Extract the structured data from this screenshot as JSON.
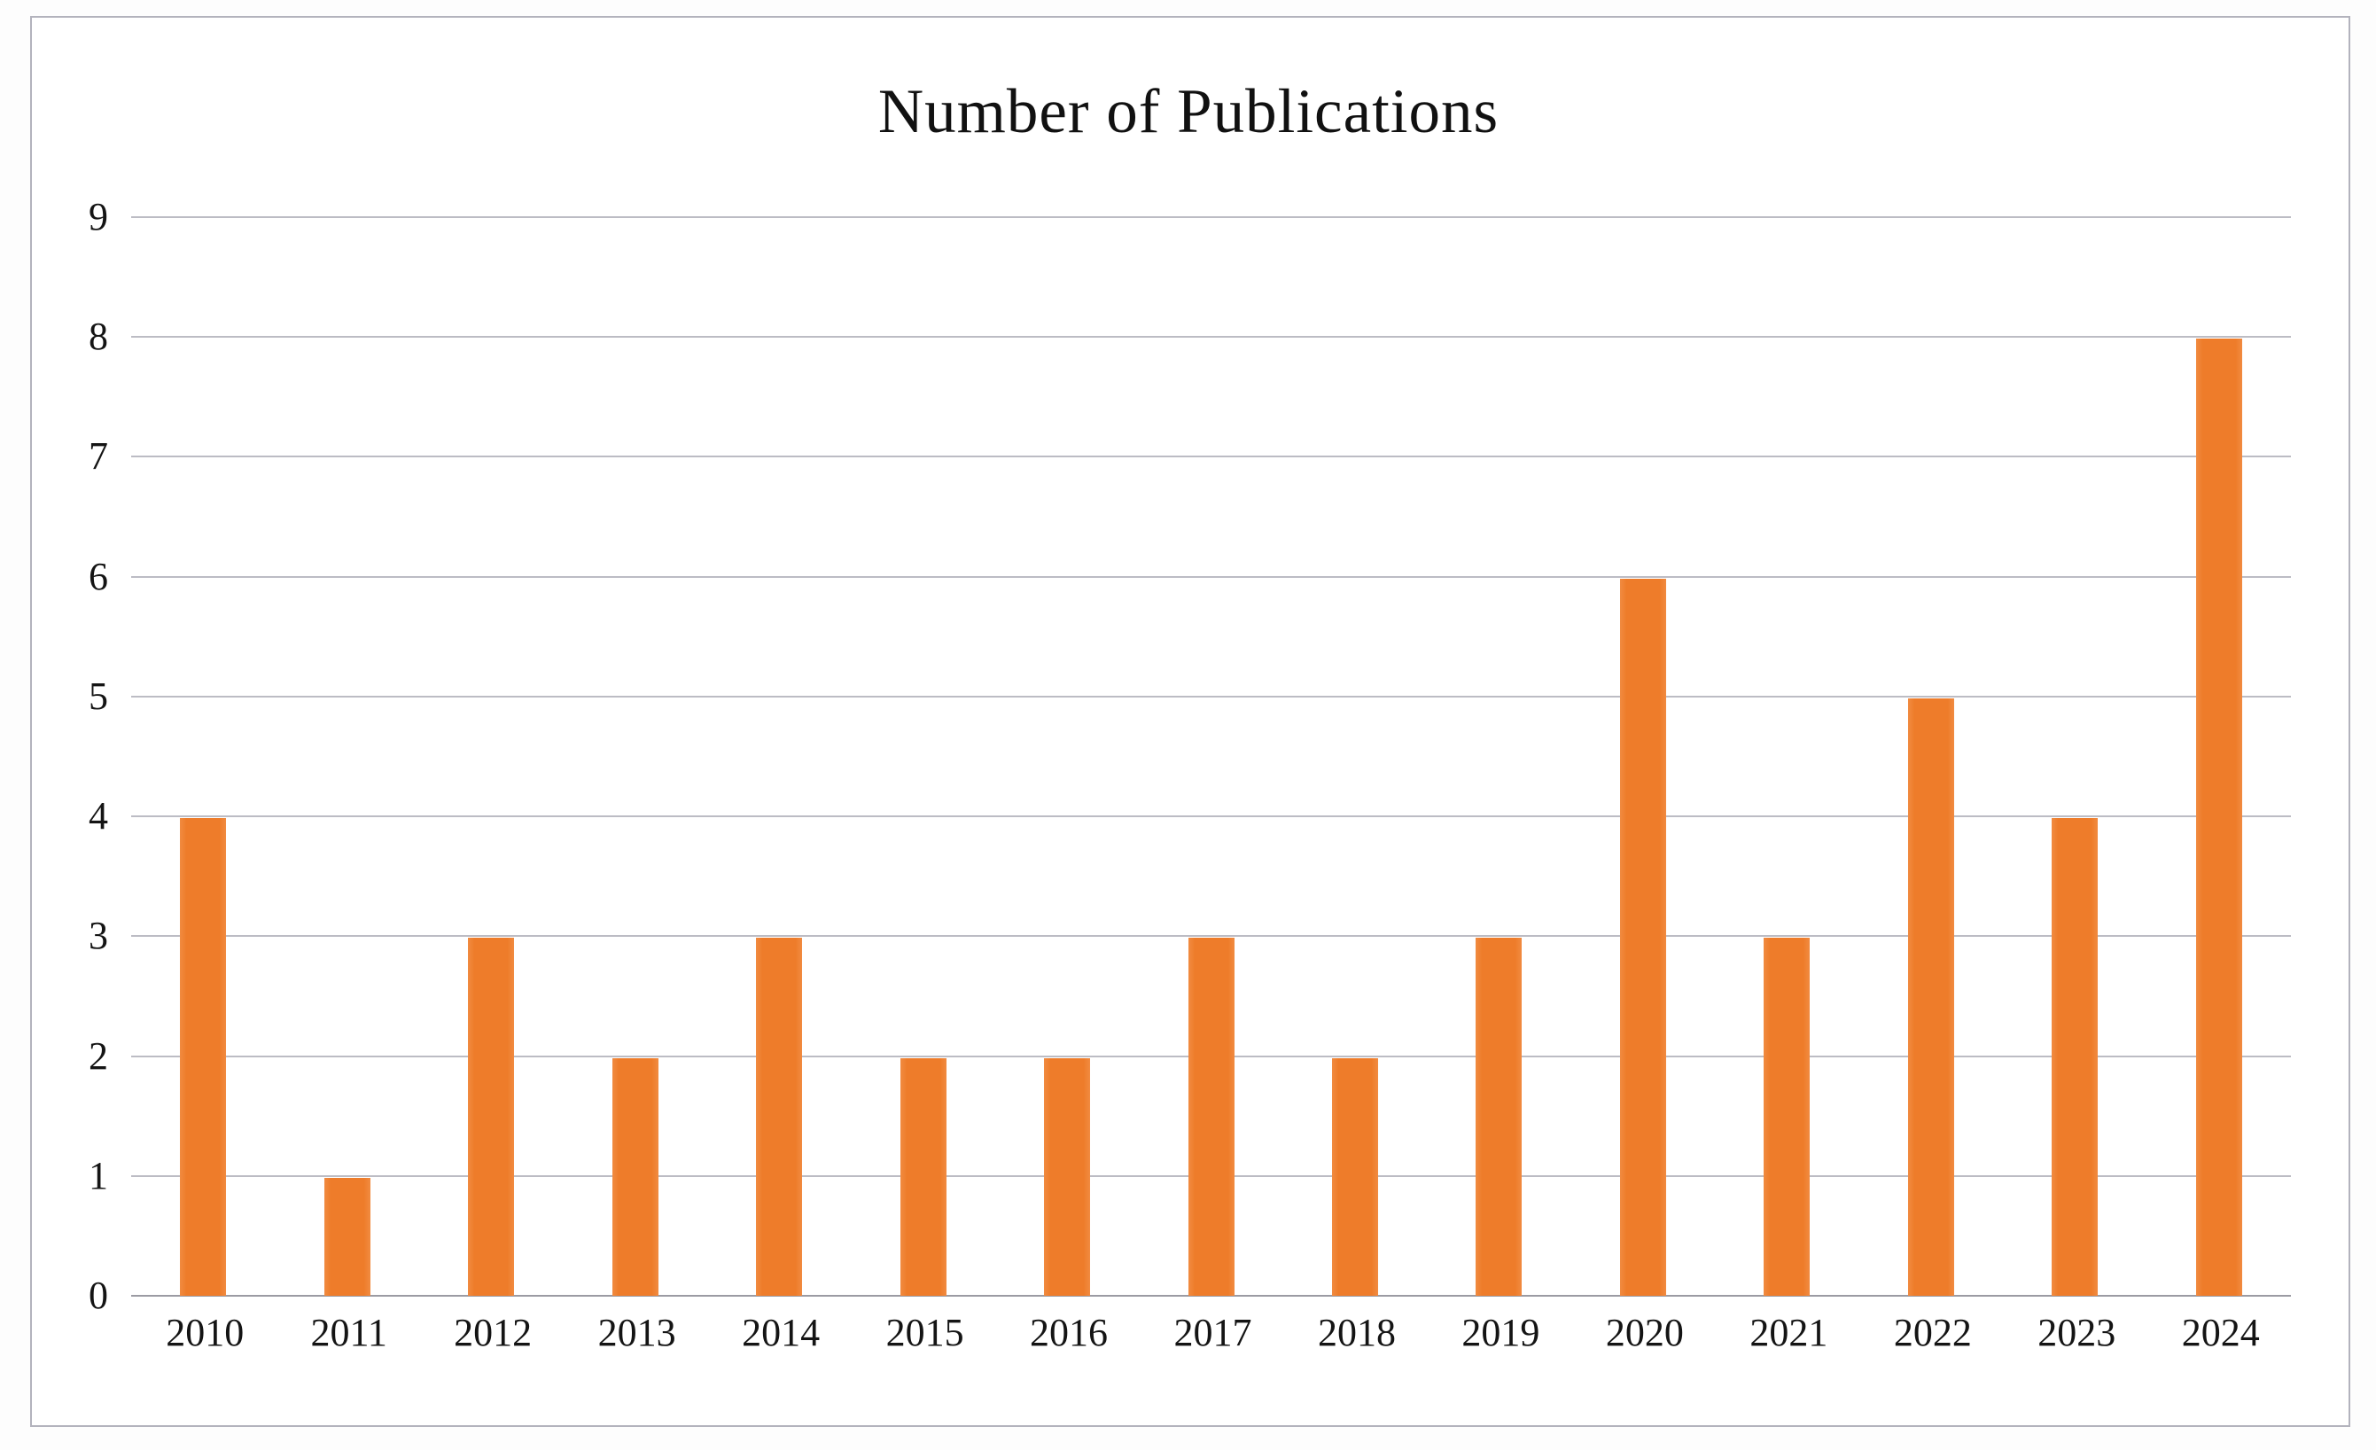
{
  "chart_data": {
    "type": "bar",
    "title": "Number of Publications",
    "categories": [
      "2010",
      "2011",
      "2012",
      "2013",
      "2014",
      "2015",
      "2016",
      "2017",
      "2018",
      "2019",
      "2020",
      "2021",
      "2022",
      "2023",
      "2024"
    ],
    "values": [
      4,
      1,
      3,
      2,
      3,
      2,
      2,
      3,
      2,
      3,
      6,
      3,
      5,
      4,
      8
    ],
    "xlabel": "",
    "ylabel": "",
    "ylim": [
      0,
      9
    ],
    "yticks": [
      0,
      1,
      2,
      3,
      4,
      5,
      6,
      7,
      8,
      9
    ],
    "grid": "horizontal",
    "legend": "none",
    "bar_color": "#EE7C2A",
    "gridline_color": "#BCBCC4",
    "axis_line_color": "#9B9BA3",
    "text_color": "#141414",
    "frame_border_color": "#B3B3BD"
  }
}
